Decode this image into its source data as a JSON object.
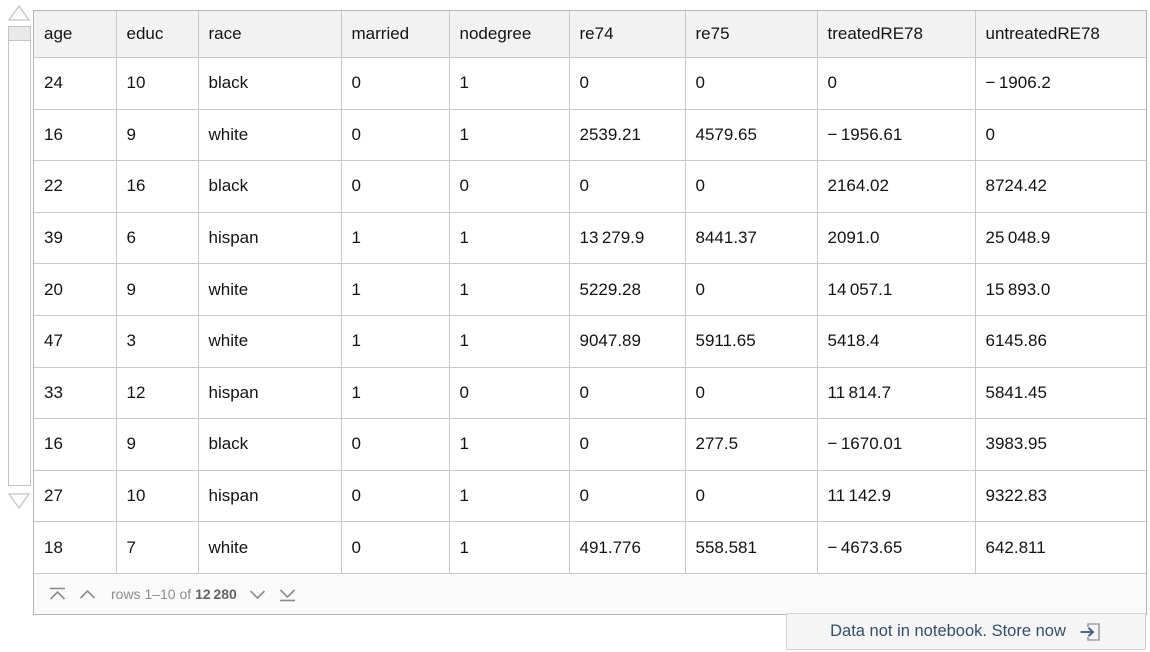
{
  "table": {
    "columns": [
      "age",
      "educ",
      "race",
      "married",
      "nodegree",
      "re74",
      "re75",
      "treatedRE78",
      "untreatedRE78"
    ],
    "rows": [
      [
        "24",
        "10",
        "black",
        "0",
        "1",
        "0",
        "0",
        "0",
        "− 1906.2"
      ],
      [
        "16",
        "9",
        "white",
        "0",
        "1",
        "2539.21",
        "4579.65",
        "− 1956.61",
        "0"
      ],
      [
        "22",
        "16",
        "black",
        "0",
        "0",
        "0",
        "0",
        "2164.02",
        "8724.42"
      ],
      [
        "39",
        "6",
        "hispan",
        "1",
        "1",
        "13 279.9",
        "8441.37",
        "2091.0",
        "25 048.9"
      ],
      [
        "20",
        "9",
        "white",
        "1",
        "1",
        "5229.28",
        "0",
        "14 057.1",
        "15 893.0"
      ],
      [
        "47",
        "3",
        "white",
        "1",
        "1",
        "9047.89",
        "5911.65",
        "5418.4",
        "6145.86"
      ],
      [
        "33",
        "12",
        "hispan",
        "1",
        "0",
        "0",
        "0",
        "11 814.7",
        "5841.45"
      ],
      [
        "16",
        "9",
        "black",
        "0",
        "1",
        "0",
        "277.5",
        "− 1670.01",
        "3983.95"
      ],
      [
        "27",
        "10",
        "hispan",
        "0",
        "1",
        "0",
        "0",
        "11 142.9",
        "9322.83"
      ],
      [
        "18",
        "7",
        "white",
        "0",
        "1",
        "491.776",
        "558.581",
        "− 4673.65",
        "642.811"
      ]
    ],
    "pager": {
      "prefix": "rows 1–10 of ",
      "total": "12 280"
    }
  },
  "store_bar": {
    "label": "Data not in notebook. Store now"
  },
  "icons": {
    "go_to_first": "chevron-up-with-bar ⤊",
    "page_up": "chevron-up ⌃",
    "page_down": "chevron-down ⌄",
    "go_to_last": "chevron-down-with-bar ⤋",
    "store_now": "arrow-into-bracket ⇥",
    "scroll_up": "triangle-up △",
    "scroll_down": "triangle-down ▽"
  },
  "colors": {
    "header_bg": "#f2f2f2",
    "grid_border": "#c9c9c9",
    "pager_bg": "#fafafa",
    "pager_text": "#8c8c8c",
    "store_text": "#33506b",
    "store_bg": "#f5f5f6"
  }
}
